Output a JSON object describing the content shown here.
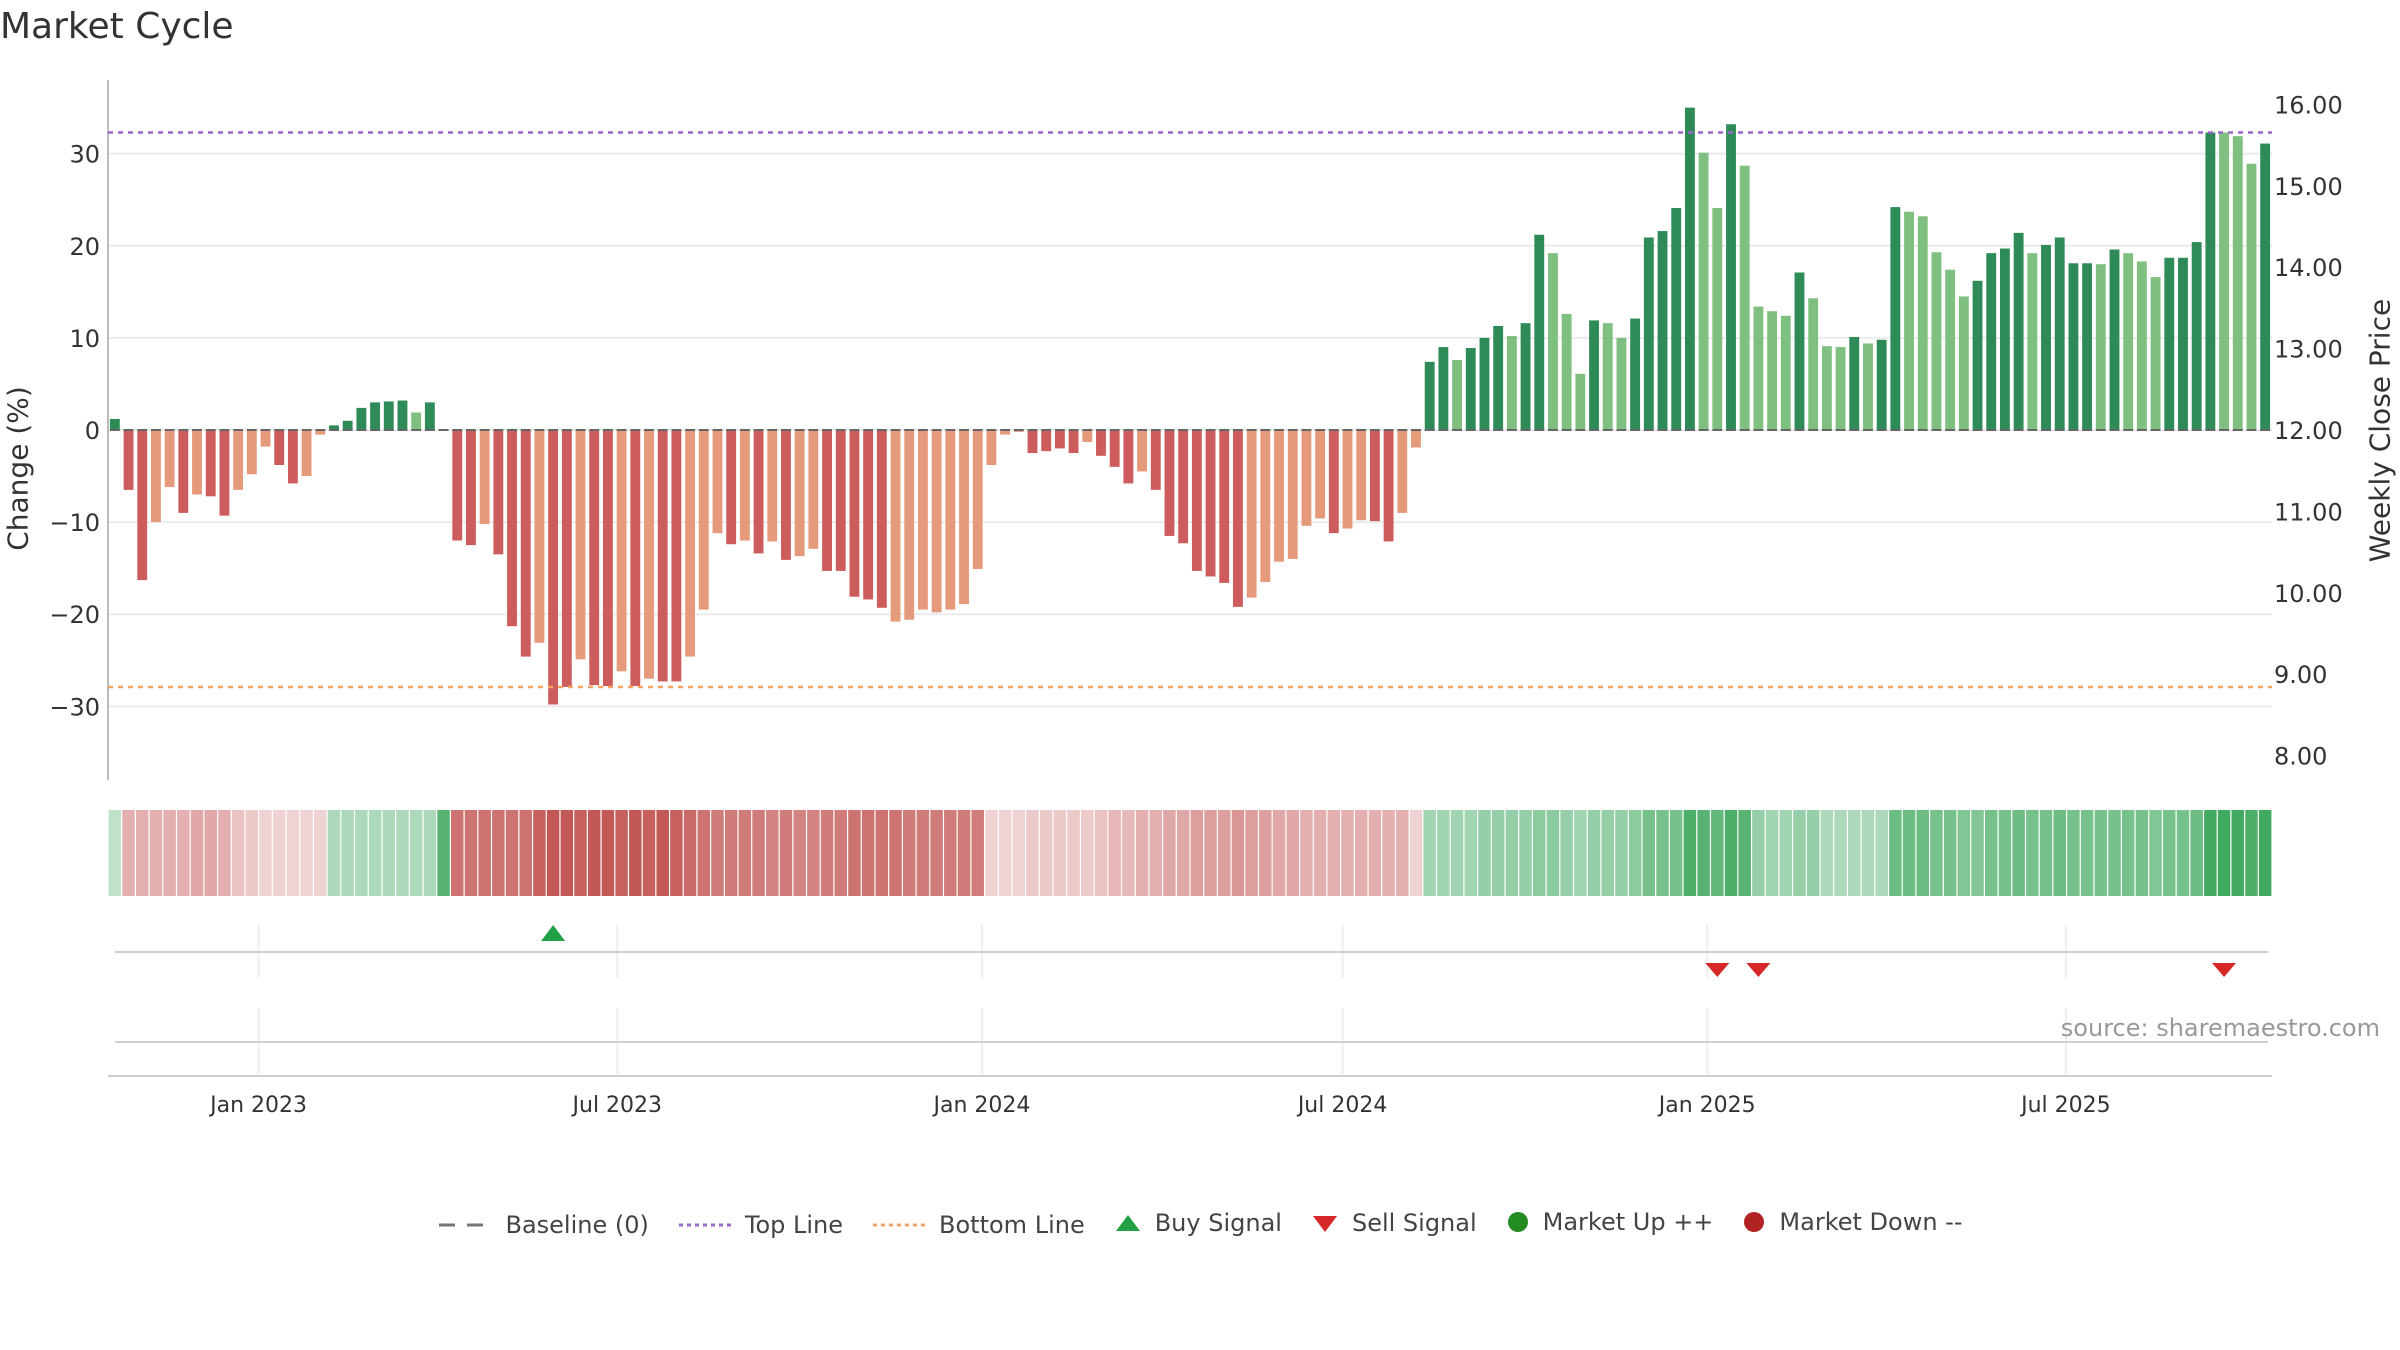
{
  "title": "Market Cycle",
  "source": "source: sharemaestro.com",
  "colors": {
    "up_dark": "#2e8b57",
    "up_light": "#7fbf7f",
    "down_dark": "#cd5c5c",
    "down_light": "#e59a7c",
    "top_line": "#9966cc",
    "bottom_line": "#f4a460",
    "buy": "#22a045",
    "sell": "#d62828"
  },
  "legend": [
    {
      "label": "Baseline (0)",
      "type": "dash",
      "color": "#777777"
    },
    {
      "label": "Top Line",
      "type": "dot",
      "color": "#9966cc"
    },
    {
      "label": "Bottom Line",
      "type": "dot",
      "color": "#f4a460"
    },
    {
      "label": "Buy Signal",
      "type": "tri-up",
      "color": "#22a045"
    },
    {
      "label": "Sell Signal",
      "type": "tri-down",
      "color": "#d62828"
    },
    {
      "label": "Market Up ++",
      "type": "circle",
      "color": "#228b22"
    },
    {
      "label": "Market Down --",
      "type": "circle",
      "color": "#b22222"
    }
  ],
  "chart_data": {
    "type": "bar",
    "y_left": {
      "label": "Change (%)",
      "range": [
        -38,
        38
      ],
      "ticks": [
        -30,
        -20,
        -10,
        0,
        10,
        20,
        30
      ],
      "tick_labels": [
        "−30",
        "−20",
        "−10",
        "0",
        "10",
        "20",
        "30"
      ]
    },
    "y_right": {
      "label": "Weekly Close Price",
      "range": [
        7.7,
        16.3
      ],
      "ticks": [
        8,
        9,
        10,
        11,
        12,
        13,
        14,
        15,
        16
      ],
      "tick_labels": [
        "8.00",
        "9.00",
        "10.00",
        "11.00",
        "12.00",
        "13.00",
        "14.00",
        "15.00",
        "16.00"
      ]
    },
    "top_line": 32.3,
    "bottom_line": -27.9,
    "x_start": "2022-10-17",
    "x_end": "2025-10-13",
    "x_ticks": [
      {
        "date": "2023-01-01",
        "label": "Jan 2023"
      },
      {
        "date": "2023-07-01",
        "label": "Jul 2023"
      },
      {
        "date": "2024-01-01",
        "label": "Jan 2024"
      },
      {
        "date": "2024-07-01",
        "label": "Jul 2024"
      },
      {
        "date": "2025-01-01",
        "label": "Jan 2025"
      },
      {
        "date": "2025-07-01",
        "label": "Jul 2025"
      }
    ],
    "series": [
      {
        "values": [
          1.2,
          -6.5,
          -16.3,
          -10.0,
          -6.2,
          -9.0,
          -7.0,
          -7.2,
          -9.3,
          -6.5,
          -4.8,
          -1.8,
          -3.8,
          -5.8,
          -5.0,
          -0.5,
          0.5,
          1.0,
          2.4,
          3.0,
          3.1,
          3.2,
          1.9,
          3.0,
          0.0,
          -12.0,
          -12.5,
          -10.2,
          -13.5,
          -21.3,
          -24.6,
          -23.1,
          -29.8,
          -27.9,
          -24.9,
          -27.7,
          -27.8,
          -26.2,
          -27.8,
          -27.0,
          -27.3,
          -27.3,
          -24.6,
          -19.5,
          -11.2,
          -12.4,
          -12.0,
          -13.4,
          -12.1,
          -14.1,
          -13.7,
          -12.9,
          -15.3,
          -15.3,
          -18.1,
          -18.4,
          -19.3,
          -20.8,
          -20.6,
          -19.5,
          -19.8,
          -19.5,
          -18.9,
          -15.1,
          -3.8,
          -0.5,
          -0.2,
          -2.5,
          -2.3,
          -2.0,
          -2.5,
          -1.3,
          -2.8,
          -4.0,
          -5.8,
          -4.5,
          -6.5,
          -11.5,
          -12.3,
          -15.3,
          -15.9,
          -16.6,
          -19.2,
          -18.2,
          -16.5,
          -14.3,
          -14.0,
          -10.4,
          -9.6,
          -11.2,
          -10.7,
          -9.8,
          -9.9,
          -12.1,
          -9.0,
          -1.9,
          7.4,
          9.0,
          7.6,
          8.9,
          10.0,
          11.3,
          10.2,
          11.6,
          21.2,
          19.2,
          12.6,
          6.1,
          11.9,
          11.6,
          10.0,
          12.1,
          20.9,
          21.6,
          24.1,
          35.0,
          30.1,
          24.1,
          33.2,
          28.7,
          13.4,
          12.9,
          12.4,
          17.1,
          14.3,
          9.1,
          9.0,
          10.1,
          9.4,
          9.8,
          24.2,
          23.7,
          23.2,
          19.3,
          17.4,
          14.5,
          16.2,
          19.2,
          19.7,
          21.4,
          19.2,
          20.1,
          20.9,
          18.1,
          18.1,
          18.0,
          19.6,
          19.2,
          18.3,
          16.6,
          18.7,
          18.7,
          20.4,
          32.3,
          32.3,
          31.9,
          28.9,
          31.1
        ],
        "shade": [
          2,
          2,
          2,
          1,
          1,
          2,
          1,
          2,
          2,
          1,
          1,
          1,
          2,
          2,
          1,
          1,
          2,
          2,
          2,
          2,
          2,
          2,
          1,
          2,
          2,
          2,
          2,
          1,
          2,
          2,
          2,
          1,
          2,
          2,
          1,
          2,
          2,
          1,
          2,
          1,
          2,
          2,
          1,
          1,
          1,
          2,
          1,
          2,
          1,
          2,
          1,
          1,
          2,
          2,
          2,
          2,
          2,
          1,
          1,
          1,
          1,
          1,
          1,
          1,
          1,
          1,
          1,
          2,
          2,
          2,
          2,
          1,
          2,
          2,
          2,
          1,
          2,
          2,
          2,
          2,
          2,
          2,
          2,
          1,
          1,
          1,
          1,
          1,
          1,
          2,
          1,
          1,
          2,
          2,
          1,
          1,
          2,
          2,
          1,
          2,
          2,
          2,
          1,
          2,
          2,
          1,
          1,
          1,
          2,
          1,
          1,
          2,
          2,
          2,
          2,
          2,
          1,
          1,
          2,
          1,
          1,
          1,
          1,
          2,
          1,
          1,
          1,
          2,
          1,
          2,
          2,
          1,
          1,
          1,
          1,
          1,
          2,
          2,
          2,
          2,
          1,
          2,
          2,
          2,
          2,
          1,
          2,
          1,
          1,
          1,
          2,
          2,
          2,
          2,
          1,
          1,
          1,
          2
        ],
        "trend": [
          0.3,
          0.45,
          0.45,
          0.45,
          0.45,
          0.45,
          0.5,
          0.5,
          0.45,
          0.35,
          0.3,
          0.25,
          0.25,
          0.25,
          0.25,
          0.25,
          0.4,
          0.4,
          0.4,
          0.4,
          0.4,
          0.4,
          0.4,
          0.4,
          0.8,
          0.8,
          0.8,
          0.8,
          0.8,
          0.8,
          0.8,
          0.9,
          0.95,
          0.95,
          0.9,
          0.95,
          0.95,
          0.9,
          0.95,
          0.9,
          0.95,
          0.9,
          0.85,
          0.8,
          0.75,
          0.75,
          0.75,
          0.75,
          0.7,
          0.75,
          0.7,
          0.7,
          0.75,
          0.75,
          0.8,
          0.8,
          0.8,
          0.8,
          0.75,
          0.75,
          0.75,
          0.75,
          0.75,
          0.75,
          0.25,
          0.25,
          0.25,
          0.3,
          0.3,
          0.3,
          0.3,
          0.3,
          0.35,
          0.4,
          0.4,
          0.45,
          0.45,
          0.5,
          0.5,
          0.55,
          0.55,
          0.55,
          0.6,
          0.55,
          0.55,
          0.5,
          0.5,
          0.45,
          0.45,
          0.45,
          0.45,
          0.45,
          0.45,
          0.45,
          0.45,
          0.25,
          0.45,
          0.45,
          0.45,
          0.45,
          0.5,
          0.5,
          0.5,
          0.5,
          0.55,
          0.55,
          0.5,
          0.45,
          0.5,
          0.5,
          0.5,
          0.55,
          0.65,
          0.65,
          0.65,
          0.85,
          0.8,
          0.75,
          0.85,
          0.8,
          0.5,
          0.45,
          0.45,
          0.5,
          0.5,
          0.4,
          0.4,
          0.4,
          0.4,
          0.4,
          0.7,
          0.7,
          0.7,
          0.65,
          0.65,
          0.6,
          0.6,
          0.65,
          0.65,
          0.7,
          0.65,
          0.65,
          0.7,
          0.65,
          0.65,
          0.65,
          0.65,
          0.65,
          0.65,
          0.6,
          0.65,
          0.65,
          0.7,
          0.9,
          0.9,
          0.9,
          0.85,
          0.9
        ]
      }
    ],
    "signals": [
      {
        "type": "buy",
        "index": 32
      },
      {
        "type": "sell",
        "index": 117
      },
      {
        "type": "sell",
        "index": 120
      },
      {
        "type": "sell",
        "index": 154
      }
    ]
  }
}
